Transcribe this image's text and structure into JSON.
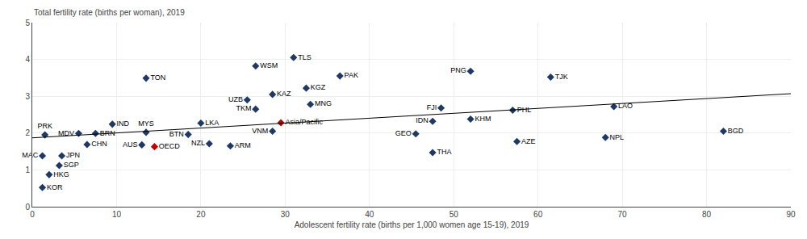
{
  "chart_data": {
    "type": "scatter",
    "xlabel": "Adolescent fertility rate (births per 1,000 women age 15-19), 2019",
    "ylabel": "Total fertility rate (births per woman), 2019",
    "xlim": [
      0,
      90
    ],
    "ylim": [
      0,
      5
    ],
    "xticks": [
      0,
      10,
      20,
      30,
      40,
      50,
      60,
      70,
      80,
      90
    ],
    "yticks": [
      0,
      1,
      2,
      3,
      4,
      5
    ],
    "grid": true,
    "series": [
      {
        "type": "scatter",
        "marker": "diamond",
        "labels": [
          "PRK",
          "MAC",
          "JPN",
          "SGP",
          "HKG",
          "KOR",
          "CHN",
          "MDV",
          "BRN",
          "IND",
          "AUS",
          "MYS",
          "OECD",
          "TON",
          "BTN",
          "LKA",
          "NZL",
          "ARM",
          "WSM",
          "UZB",
          "TKM",
          "VNM",
          "Asia/Pacific",
          "TLS",
          "KAZ",
          "KGZ",
          "MNG",
          "PAK",
          "GEO",
          "IDN",
          "THA",
          "FJI",
          "KHM",
          "PNG",
          "PHL",
          "AZE",
          "TJK",
          "LAO",
          "NPL",
          "BGD"
        ],
        "x": [
          1.5,
          1.2,
          3.5,
          3.2,
          2.0,
          1.2,
          6.5,
          5.5,
          7.5,
          9.5,
          13.0,
          13.5,
          14.5,
          13.5,
          18.5,
          20.0,
          21.0,
          23.5,
          26.5,
          25.5,
          26.5,
          28.5,
          29.5,
          31.0,
          28.5,
          32.5,
          33.0,
          36.5,
          45.5,
          47.5,
          47.5,
          48.5,
          52.0,
          52.0,
          57.0,
          57.5,
          61.5,
          69.0,
          68.0,
          82.0
        ],
        "values": [
          1.95,
          1.38,
          1.38,
          1.12,
          0.87,
          0.52,
          1.69,
          1.99,
          1.99,
          2.24,
          1.68,
          2.02,
          1.63,
          3.49,
          1.96,
          2.27,
          1.71,
          1.65,
          3.82,
          2.9,
          2.65,
          2.05,
          2.28,
          4.05,
          3.05,
          3.22,
          2.78,
          3.55,
          1.98,
          2.32,
          1.47,
          2.68,
          2.38,
          3.68,
          2.62,
          1.77,
          3.52,
          2.72,
          1.88,
          2.05
        ],
        "colors": [
          "#1f3864",
          "#1f3864",
          "#1f3864",
          "#1f3864",
          "#1f3864",
          "#1f3864",
          "#1f3864",
          "#1f3864",
          "#1f3864",
          "#1f3864",
          "#1f3864",
          "#1f3864",
          "#c00000",
          "#1f3864",
          "#1f3864",
          "#1f3864",
          "#1f3864",
          "#1f3864",
          "#1f3864",
          "#1f3864",
          "#1f3864",
          "#1f3864",
          "#c00000",
          "#1f3864",
          "#1f3864",
          "#1f3864",
          "#1f3864",
          "#1f3864",
          "#1f3864",
          "#1f3864",
          "#1f3864",
          "#1f3864",
          "#1f3864",
          "#1f3864",
          "#1f3864",
          "#1f3864",
          "#1f3864",
          "#1f3864",
          "#1f3864",
          "#1f3864"
        ]
      },
      {
        "type": "line",
        "x": [
          0,
          90
        ],
        "values": [
          1.87,
          3.07
        ],
        "color": "#000000"
      }
    ]
  }
}
